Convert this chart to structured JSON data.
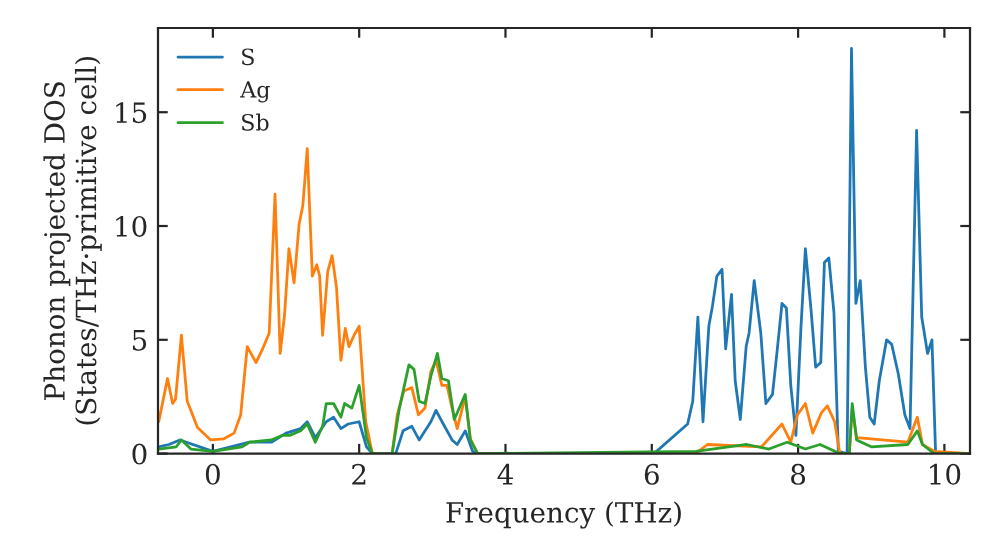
{
  "chart_data": {
    "type": "line",
    "xlabel": "Frequency (THz)",
    "ylabel": "Phonon projected DOS\n(States/THz·primitive cell)",
    "xlim": [
      -0.75,
      10.35
    ],
    "ylim": [
      0,
      18.7
    ],
    "xticks": [
      0,
      2,
      4,
      6,
      8,
      10
    ],
    "yticks": [
      0,
      5,
      10,
      15
    ],
    "grid": false,
    "legend": "top left",
    "series": [
      {
        "name": "S",
        "color": "#1f77b4",
        "x": [
          -0.74,
          -0.6,
          -0.45,
          0,
          0.5,
          0.8,
          1.0,
          1.2,
          1.29,
          1.4,
          1.55,
          1.65,
          1.75,
          1.85,
          2.0,
          2.1,
          2.18,
          2.5,
          2.6,
          2.72,
          2.82,
          2.98,
          3.05,
          3.15,
          3.27,
          3.34,
          3.45,
          3.55,
          3.62,
          6.03,
          6.49,
          6.56,
          6.63,
          6.7,
          6.78,
          6.83,
          6.89,
          6.96,
          7.01,
          7.09,
          7.14,
          7.21,
          7.29,
          7.33,
          7.4,
          7.49,
          7.56,
          7.65,
          7.71,
          7.78,
          7.84,
          7.9,
          7.97,
          8.04,
          8.1,
          8.18,
          8.24,
          8.31,
          8.36,
          8.42,
          8.49,
          8.55,
          8.67,
          8.73,
          8.79,
          8.85,
          8.92,
          8.98,
          9.04,
          9.11,
          9.21,
          9.28,
          9.37,
          9.46,
          9.53,
          9.62,
          9.69,
          9.77,
          9.83,
          9.88,
          10.35
        ],
        "values": [
          0.3,
          0.4,
          0.6,
          0.1,
          0.5,
          0.5,
          0.9,
          1.1,
          1.4,
          0.7,
          1.4,
          1.6,
          1.1,
          1.3,
          1.4,
          0.3,
          0,
          0,
          1.0,
          1.2,
          0.6,
          1.4,
          1.9,
          1.3,
          0.6,
          0.4,
          1.0,
          0.1,
          0,
          0,
          1.3,
          2.3,
          6.0,
          1.4,
          5.6,
          6.5,
          7.8,
          8.1,
          4.6,
          7.0,
          3.2,
          1.5,
          4.7,
          5.3,
          7.6,
          5.3,
          2.2,
          2.6,
          4.4,
          6.6,
          6.4,
          3.0,
          0.8,
          5.6,
          9.0,
          6.2,
          3.8,
          4.0,
          8.4,
          8.6,
          6.2,
          0.1,
          0,
          17.8,
          6.6,
          7.6,
          3.8,
          1.6,
          1.3,
          3.2,
          5.0,
          4.8,
          3.5,
          1.7,
          1.1,
          14.2,
          6.0,
          4.4,
          5.0,
          0,
          0
        ]
      },
      {
        "name": "Ag",
        "color": "#ff7f0e",
        "x": [
          -0.74,
          -0.62,
          -0.55,
          -0.51,
          -0.43,
          -0.35,
          -0.21,
          -0.03,
          0.15,
          0.29,
          0.38,
          0.47,
          0.59,
          0.68,
          0.77,
          0.85,
          0.92,
          0.98,
          1.04,
          1.11,
          1.18,
          1.23,
          1.29,
          1.36,
          1.42,
          1.46,
          1.5,
          1.57,
          1.63,
          1.69,
          1.75,
          1.81,
          1.86,
          1.93,
          2.0,
          2.09,
          2.18,
          2.45,
          2.52,
          2.61,
          2.72,
          2.81,
          2.9,
          2.98,
          3.05,
          3.13,
          3.2,
          3.27,
          3.34,
          3.45,
          3.52,
          3.62,
          6.6,
          6.76,
          7.5,
          7.78,
          7.9,
          7.99,
          8.1,
          8.2,
          8.32,
          8.4,
          8.5,
          8.57,
          8.7,
          8.74,
          8.8,
          9.5,
          9.63,
          9.7,
          9.86,
          10.35
        ],
        "values": [
          1.4,
          3.3,
          2.2,
          2.4,
          5.2,
          2.3,
          1.15,
          0.6,
          0.65,
          0.9,
          1.7,
          4.7,
          4.0,
          4.6,
          5.3,
          11.4,
          4.4,
          6.1,
          9.0,
          7.5,
          10.1,
          10.9,
          13.4,
          7.8,
          8.3,
          7.8,
          5.2,
          8.0,
          8.7,
          7.3,
          4.1,
          5.5,
          4.7,
          5.2,
          5.6,
          1.4,
          0,
          0,
          1.7,
          2.75,
          2.9,
          1.7,
          2.0,
          3.6,
          4.1,
          3.0,
          3.0,
          2.0,
          1.1,
          2.5,
          0.65,
          0,
          0,
          0.4,
          0.3,
          1.3,
          0.5,
          1.7,
          2.2,
          0.9,
          1.8,
          2.1,
          1.4,
          0,
          0,
          2.0,
          0.7,
          0.5,
          1.6,
          0.4,
          0.1,
          0
        ]
      },
      {
        "name": "Sb",
        "color": "#2ca02c",
        "x": [
          -0.74,
          -0.5,
          -0.43,
          -0.3,
          0,
          0.4,
          0.5,
          0.8,
          0.95,
          1.05,
          1.2,
          1.29,
          1.4,
          1.5,
          1.55,
          1.65,
          1.75,
          1.8,
          1.9,
          2.0,
          2.1,
          2.18,
          2.45,
          2.55,
          2.68,
          2.75,
          2.82,
          2.9,
          2.98,
          3.07,
          3.13,
          3.22,
          3.3,
          3.45,
          3.52,
          3.62,
          6.6,
          7.3,
          7.6,
          7.85,
          8.1,
          8.3,
          8.57,
          8.7,
          8.74,
          8.8,
          9.0,
          9.5,
          9.63,
          9.7,
          9.86,
          10.35
        ],
        "values": [
          0.2,
          0.3,
          0.6,
          0.2,
          0.1,
          0.3,
          0.5,
          0.6,
          0.8,
          0.8,
          1.0,
          1.3,
          0.5,
          1.2,
          2.2,
          2.2,
          1.6,
          2.2,
          2.0,
          3.0,
          0.7,
          0,
          0,
          2.0,
          3.9,
          3.7,
          2.3,
          2.2,
          3.4,
          4.4,
          3.3,
          3.2,
          1.5,
          2.6,
          0.6,
          0,
          0.1,
          0.4,
          0.2,
          0.5,
          0.2,
          0.4,
          0,
          0,
          2.2,
          0.6,
          0.3,
          0.4,
          1.0,
          0.4,
          0,
          0
        ]
      }
    ]
  }
}
